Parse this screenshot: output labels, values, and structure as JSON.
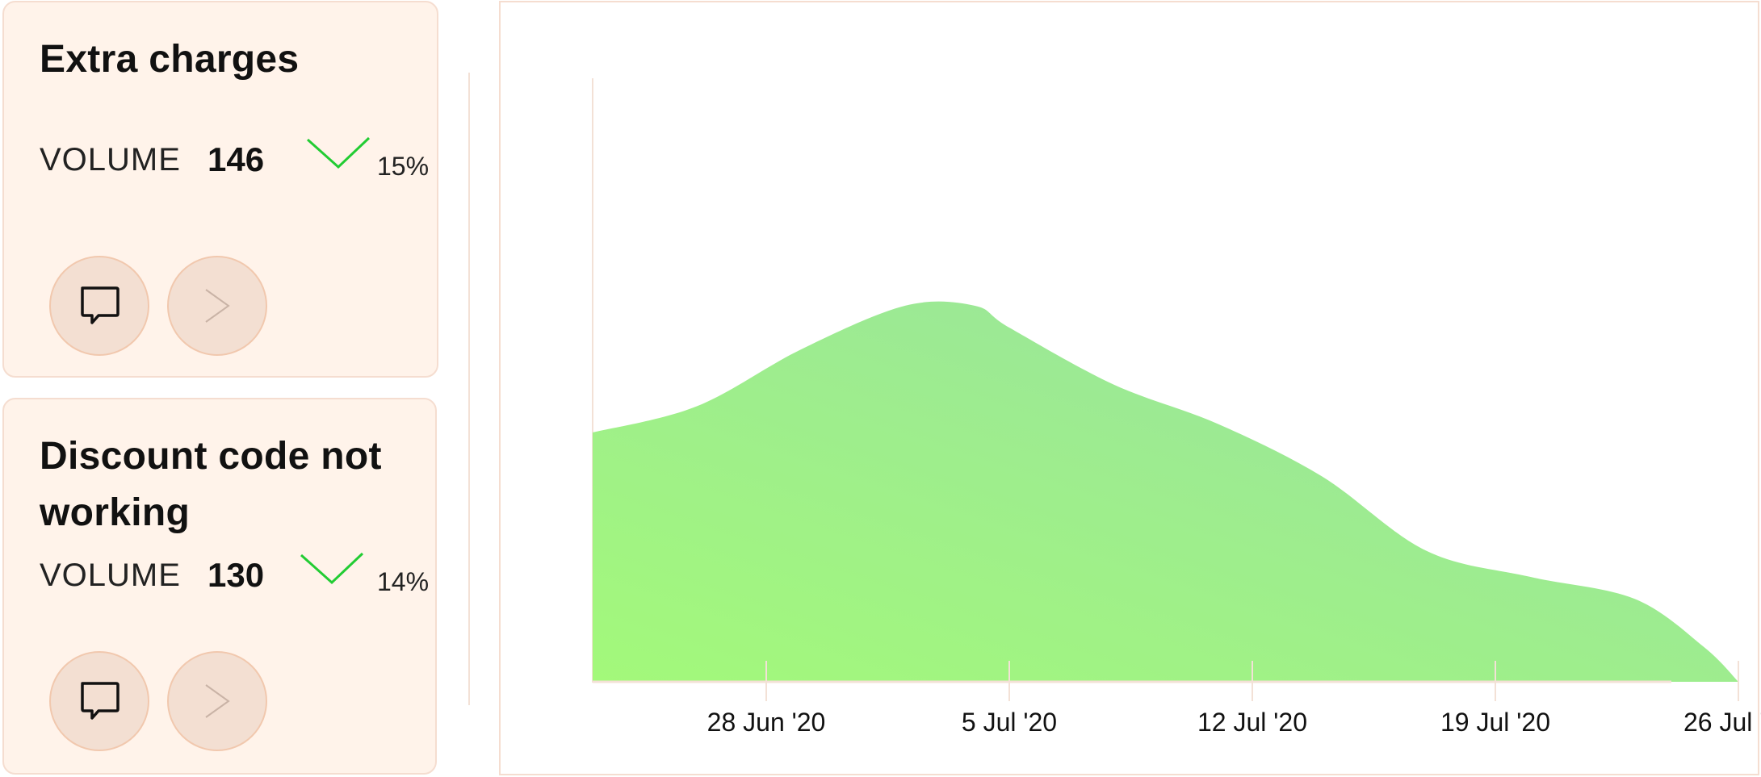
{
  "issues": [
    {
      "title": "Extra charges",
      "metric_label": "VOLUME",
      "volume": "146",
      "trend": "down",
      "trend_pct": "15%"
    },
    {
      "title": "Discount code not working",
      "metric_label": "VOLUME",
      "volume": "130",
      "trend": "down",
      "trend_pct": "14%"
    }
  ],
  "icons": {
    "comment": "speech-bubble-icon",
    "next": "chevron-right-icon",
    "trend": "checkmark-trend-icon"
  },
  "colors": {
    "card_bg": "#fff3ea",
    "trend": "#22cc33",
    "area_start": "#a3f97a",
    "area_end": "#98e0a3"
  },
  "chart_data": {
    "type": "area",
    "title": "",
    "xlabel": "",
    "ylabel": "",
    "x": [
      "2020-06-23",
      "2020-06-26",
      "2020-06-29",
      "2020-07-02",
      "2020-07-04",
      "2020-07-05",
      "2020-07-08",
      "2020-07-11",
      "2020-07-14",
      "2020-07-17",
      "2020-07-20",
      "2020-07-23",
      "2020-07-25",
      "2020-07-26"
    ],
    "y": [
      57,
      63,
      76,
      86,
      86,
      81,
      68,
      59,
      47,
      30,
      24,
      19,
      8,
      0
    ],
    "ylim": [
      0,
      100
    ],
    "tick_labels": [
      "28 Jun '20",
      "5 Jul '20",
      "12 Jul '20",
      "19 Jul '20",
      "26 Jul '20"
    ],
    "tick_dates": [
      "2020-06-28",
      "2020-07-05",
      "2020-07-12",
      "2020-07-19",
      "2020-07-26"
    ],
    "grid": false,
    "legend": "none"
  }
}
